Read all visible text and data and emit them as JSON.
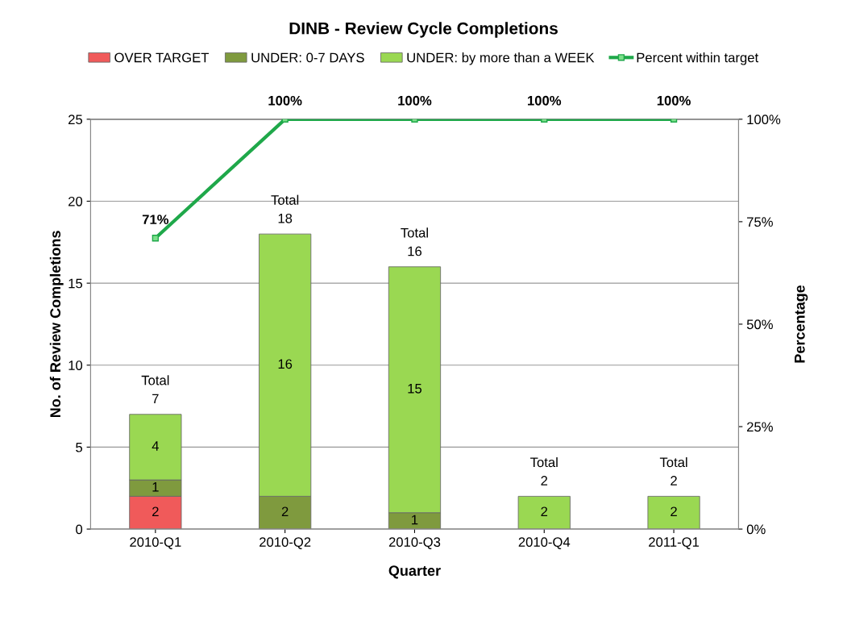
{
  "chart_data": {
    "type": "bar",
    "title": "DINB - Review Cycle Completions",
    "xlabel": "Quarter",
    "ylabel": "No. of Review Completions",
    "y2label": "Percentage",
    "categories": [
      "2010-Q1",
      "2010-Q2",
      "2010-Q3",
      "2010-Q4",
      "2011-Q1"
    ],
    "stacked": true,
    "series": [
      {
        "name": "OVER TARGET",
        "color": "#f05a5a",
        "values": [
          2,
          0,
          0,
          0,
          0
        ],
        "value_labels": [
          "2",
          null,
          null,
          null,
          null
        ]
      },
      {
        "name": "UNDER: 0-7 DAYS",
        "color": "#7f9a3e",
        "values": [
          1,
          2,
          1,
          0,
          0
        ],
        "value_labels": [
          "1",
          "2",
          "1",
          null,
          null
        ]
      },
      {
        "name": "UNDER: by more than a WEEK",
        "color": "#9ad852",
        "values": [
          4,
          16,
          15,
          2,
          2
        ],
        "value_labels": [
          "4",
          "16",
          "15",
          "2",
          "2"
        ]
      },
      {
        "name": "Percent within target",
        "type": "line",
        "axis": "y2",
        "color": "#1fa84a",
        "marker": "square",
        "values": [
          71,
          100,
          100,
          100,
          100
        ],
        "value_labels": [
          "71%",
          "100%",
          "100%",
          "100%",
          "100%"
        ]
      }
    ],
    "totals": [
      "Total\n7",
      "Total\n18",
      "Total\n16",
      "Total\n2",
      "Total\n2"
    ],
    "ylim": [
      0,
      25
    ],
    "yticks": [
      0,
      5,
      10,
      15,
      20,
      25
    ],
    "y2lim": [
      0,
      100
    ],
    "y2ticks": [
      {
        "value": 0,
        "label": "0%"
      },
      {
        "value": 25,
        "label": "25%"
      },
      {
        "value": 50,
        "label": "50%"
      },
      {
        "value": 75,
        "label": "75%"
      },
      {
        "value": 100,
        "label": "100%"
      }
    ],
    "grid": "y",
    "legend": "top"
  }
}
